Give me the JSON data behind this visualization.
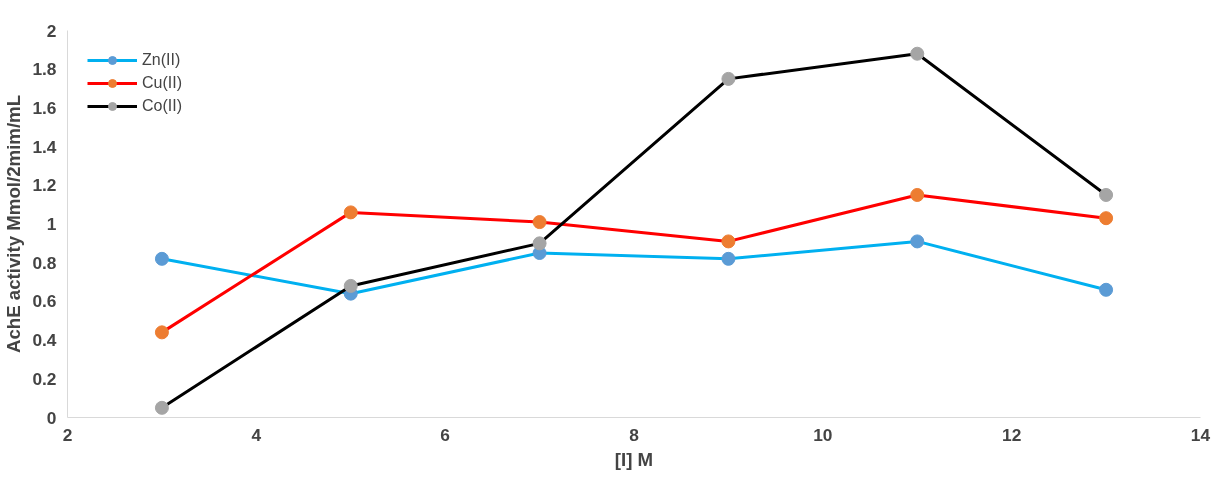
{
  "chart_data": {
    "type": "line",
    "xlabel": "[I] M",
    "ylabel": "AchE activity Mmol/2mim/mL",
    "x": [
      3,
      5,
      7,
      9,
      11,
      13
    ],
    "series": [
      {
        "name": "Zn(II)",
        "color": "#00b0f0",
        "colors": [
          "#5b9bd5",
          "#5b9bd5",
          "#5b9bd5",
          "#5b9bd5",
          "#5b9bd5",
          "#5b9bd5"
        ],
        "values": [
          0.82,
          0.64,
          0.85,
          0.82,
          0.91,
          0.66
        ]
      },
      {
        "name": "Cu(II)",
        "color": "#ff0000",
        "colors": [
          "#ed7d31",
          "#ed7d31",
          "#ed7d31",
          "#ed7d31",
          "#ed7d31",
          "#ed7d31"
        ],
        "values": [
          0.44,
          1.06,
          1.01,
          0.91,
          1.15,
          1.03
        ]
      },
      {
        "name": "Co(II)",
        "color": "#000000",
        "colors": [
          "#a5a5a5",
          "#a5a5a5",
          "#a5a5a5",
          "#a5a5a5",
          "#a5a5a5",
          "#a5a5a5"
        ],
        "values": [
          0.05,
          0.68,
          0.9,
          1.75,
          1.88,
          1.15
        ]
      }
    ],
    "xlim": [
      2,
      14
    ],
    "xticks": [
      2,
      4,
      6,
      8,
      10,
      12,
      14
    ],
    "ylim": [
      0,
      2
    ],
    "yticks": [
      0,
      0.2,
      0.4,
      0.6,
      0.8,
      1,
      1.2,
      1.4,
      1.6,
      1.8,
      2
    ],
    "grid": false,
    "legend": "top left",
    "marker": "circle",
    "line_style": "solid"
  }
}
